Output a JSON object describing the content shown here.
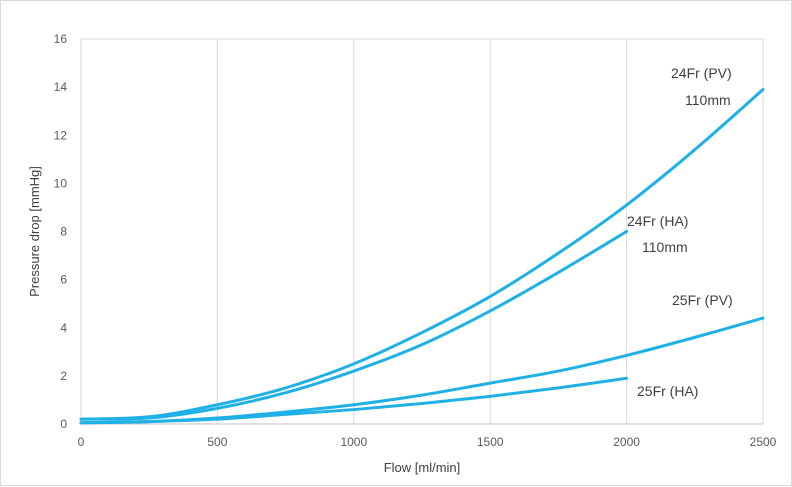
{
  "chart_data": {
    "type": "line",
    "xlabel": "Flow [ml/min]",
    "ylabel": "Pressure drop [mmHg]",
    "xlim": [
      0,
      2500
    ],
    "ylim": [
      0,
      16
    ],
    "xticks": [
      0,
      500,
      1000,
      1500,
      2000,
      2500
    ],
    "yticks": [
      0,
      2,
      4,
      6,
      8,
      10,
      12,
      14,
      16
    ],
    "grid": "vertical",
    "legend": "none",
    "line_color": "#1fb0e6",
    "series": [
      {
        "name": "24Fr (PV)",
        "name_line2": "110mm",
        "x": [
          0,
          250,
          500,
          750,
          1000,
          1250,
          1500,
          1750,
          2000,
          2250,
          2500
        ],
        "y": [
          0.2,
          0.3,
          0.8,
          1.5,
          2.5,
          3.8,
          5.3,
          7.1,
          9.1,
          11.4,
          13.9
        ]
      },
      {
        "name": "24Fr (HA)",
        "name_line2": "110mm",
        "x": [
          0,
          250,
          500,
          750,
          1000,
          1250,
          1500,
          1750,
          2000
        ],
        "y": [
          0.2,
          0.25,
          0.65,
          1.3,
          2.2,
          3.3,
          4.7,
          6.3,
          8.0
        ]
      },
      {
        "name": "25Fr (PV)",
        "x": [
          0,
          250,
          500,
          750,
          1000,
          1250,
          1500,
          1750,
          2000,
          2250,
          2500
        ],
        "y": [
          0.05,
          0.1,
          0.25,
          0.5,
          0.8,
          1.2,
          1.7,
          2.2,
          2.85,
          3.6,
          4.4
        ]
      },
      {
        "name": "25Fr (HA)",
        "x": [
          0,
          250,
          500,
          750,
          1000,
          1250,
          1500,
          1750,
          2000
        ],
        "y": [
          0.05,
          0.1,
          0.2,
          0.4,
          0.6,
          0.85,
          1.15,
          1.5,
          1.9
        ]
      }
    ]
  }
}
